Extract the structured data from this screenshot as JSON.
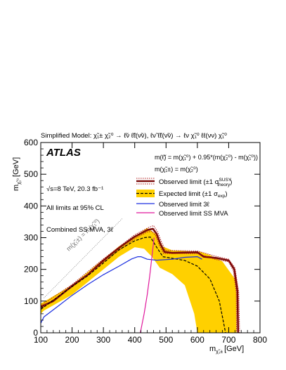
{
  "header": {
    "model_prefix": "Simplified Model: ",
    "model_decay": "χ̃₁± χ̃₂⁰ → ℓ̃ν ℓ̃ℓ(ν̃ν), ℓν̃ ℓ̃ℓ(ν̃ν) → ℓν χ̃₁⁰ ℓℓ(νν) χ̃₁⁰"
  },
  "labels": {
    "atlas": "ATLAS",
    "energy": "√s=8 TeV, 20.3 fb⁻¹",
    "cl": "All limits at 95% CL",
    "combined": "Combined SS MVA, 3ℓ",
    "mass_relation_1": "m(ℓ̃) = m(χ̃₁⁰) + 0.95*(m(χ̃₂⁰) - m(χ̃₁⁰))",
    "mass_relation_2": "m(χ̃₁±) = m(χ̃₂⁰)",
    "diag_label": "m(χ̃₁±) = m(χ̃₁⁰)",
    "xlabel_main": "m",
    "xlabel_sub": "χ̃₁±",
    "xlabel_unit": "[GeV]",
    "ylabel_main": "m",
    "ylabel_sub": "χ̃₁⁰",
    "ylabel_unit": "[GeV]"
  },
  "legend": [
    {
      "key": "observed",
      "text": "Observed limit (±1 σ",
      "sup": "SUSY",
      "sub": "theory",
      "tail": ")"
    },
    {
      "key": "expected",
      "text": "Expected limit (±1 σ",
      "sub": "exp",
      "tail": ")"
    },
    {
      "key": "obs3l",
      "text": "Observed limit 3ℓ"
    },
    {
      "key": "obsss",
      "text": "Observed limit SS MVA"
    }
  ],
  "colors": {
    "observed": "#7a0a0a",
    "theory_band": "#b01818",
    "expected": "#000000",
    "exp_band": "#ffd000",
    "obs3l": "#1a2ee0",
    "obsss": "#e0189c",
    "diagonal": "#808080"
  },
  "chart_data": {
    "type": "line",
    "title": "",
    "xlabel": "m(χ̃₁±) [GeV]",
    "ylabel": "m(χ̃₁⁰) [GeV]",
    "xlim": [
      100,
      800
    ],
    "ylim": [
      0,
      600
    ],
    "xticks": [
      100,
      200,
      300,
      400,
      500,
      600,
      700,
      800
    ],
    "yticks": [
      0,
      100,
      200,
      300,
      400,
      500,
      600
    ],
    "exp_band_upper": [
      [
        100,
        92
      ],
      [
        200,
        150
      ],
      [
        300,
        232
      ],
      [
        350,
        273
      ],
      [
        400,
        304
      ],
      [
        440,
        330
      ],
      [
        470,
        310
      ],
      [
        490,
        272
      ],
      [
        520,
        260
      ],
      [
        560,
        258
      ],
      [
        610,
        255
      ],
      [
        640,
        245
      ],
      [
        680,
        225
      ],
      [
        720,
        170
      ]
    ],
    "exp_band_lower": [
      [
        720,
        170
      ],
      [
        725,
        120
      ],
      [
        725,
        0
      ],
      [
        600,
        0
      ],
      [
        590,
        60
      ],
      [
        560,
        150
      ],
      [
        520,
        185
      ],
      [
        480,
        205
      ],
      [
        455,
        240
      ],
      [
        430,
        265
      ],
      [
        400,
        270
      ],
      [
        350,
        240
      ],
      [
        300,
        200
      ],
      [
        200,
        120
      ],
      [
        110,
        70
      ],
      [
        100,
        60
      ]
    ],
    "series": [
      {
        "name": "Observed limit",
        "key": "observed",
        "points": [
          [
            100,
            82
          ],
          [
            140,
            100
          ],
          [
            200,
            148
          ],
          [
            250,
            183
          ],
          [
            300,
            228
          ],
          [
            350,
            268
          ],
          [
            400,
            303
          ],
          [
            440,
            324
          ],
          [
            458,
            328
          ],
          [
            470,
            312
          ],
          [
            482,
            280
          ],
          [
            495,
            255
          ],
          [
            520,
            252
          ],
          [
            560,
            253
          ],
          [
            600,
            254
          ],
          [
            620,
            240
          ],
          [
            660,
            236
          ],
          [
            700,
            228
          ],
          [
            718,
            200
          ],
          [
            728,
            130
          ],
          [
            730,
            0
          ]
        ]
      },
      {
        "name": "Observed limit theory +1σ",
        "key": "theory_up",
        "points": [
          [
            100,
            86
          ],
          [
            200,
            152
          ],
          [
            300,
            233
          ],
          [
            400,
            309
          ],
          [
            440,
            330
          ],
          [
            460,
            338
          ],
          [
            473,
            318
          ],
          [
            485,
            288
          ],
          [
            498,
            260
          ],
          [
            600,
            258
          ],
          [
            660,
            241
          ],
          [
            700,
            232
          ],
          [
            720,
            205
          ],
          [
            732,
            130
          ],
          [
            735,
            0
          ]
        ]
      },
      {
        "name": "Observed limit theory -1σ",
        "key": "theory_dn",
        "points": [
          [
            100,
            78
          ],
          [
            200,
            144
          ],
          [
            300,
            223
          ],
          [
            400,
            297
          ],
          [
            440,
            318
          ],
          [
            455,
            320
          ],
          [
            467,
            306
          ],
          [
            479,
            275
          ],
          [
            492,
            250
          ],
          [
            600,
            250
          ],
          [
            660,
            231
          ],
          [
            700,
            224
          ],
          [
            715,
            195
          ],
          [
            724,
            130
          ],
          [
            725,
            0
          ]
        ]
      },
      {
        "name": "Expected limit",
        "key": "expected",
        "points": [
          [
            100,
            74
          ],
          [
            150,
            110
          ],
          [
            200,
            146
          ],
          [
            250,
            180
          ],
          [
            300,
            220
          ],
          [
            350,
            262
          ],
          [
            400,
            290
          ],
          [
            430,
            300
          ],
          [
            450,
            302
          ],
          [
            470,
            270
          ],
          [
            490,
            240
          ],
          [
            520,
            235
          ],
          [
            560,
            228
          ],
          [
            600,
            210
          ],
          [
            640,
            170
          ],
          [
            670,
            100
          ],
          [
            690,
            0
          ]
        ]
      },
      {
        "name": "Observed limit 3ℓ",
        "key": "obs3l",
        "points": [
          [
            100,
            30
          ],
          [
            110,
            50
          ],
          [
            150,
            80
          ],
          [
            200,
            118
          ],
          [
            250,
            152
          ],
          [
            300,
            183
          ],
          [
            350,
            210
          ],
          [
            390,
            233
          ],
          [
            410,
            240
          ],
          [
            420,
            240
          ],
          [
            440,
            232
          ],
          [
            470,
            229
          ],
          [
            520,
            232
          ],
          [
            560,
            238
          ],
          [
            600,
            240
          ],
          [
            615,
            232
          ]
        ]
      },
      {
        "name": "Observed limit SS MVA",
        "key": "obsss",
        "points": [
          [
            418,
            0
          ],
          [
            430,
            60
          ],
          [
            440,
            120
          ],
          [
            448,
            180
          ],
          [
            455,
            240
          ],
          [
            460,
            285
          ],
          [
            462,
            300
          ]
        ]
      }
    ],
    "diagonal": [
      [
        110,
        110
      ],
      [
        360,
        360
      ]
    ]
  }
}
